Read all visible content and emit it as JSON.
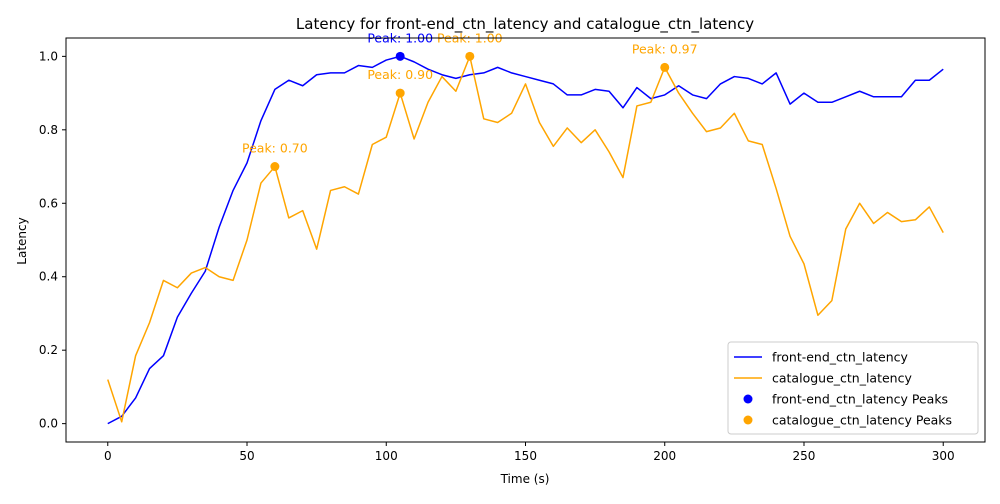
{
  "chart_data": {
    "type": "line",
    "title": "Latency for front-end_ctn_latency and catalogue_ctn_latency",
    "xlabel": "Time (s)",
    "ylabel": "Latency",
    "xlim": [
      -15,
      315
    ],
    "ylim": [
      -0.05,
      1.05
    ],
    "xticks": [
      0,
      50,
      100,
      150,
      200,
      250,
      300
    ],
    "xtick_labels": [
      "0",
      "50",
      "100",
      "150",
      "200",
      "250",
      "300"
    ],
    "yticks": [
      0.0,
      0.2,
      0.4,
      0.6,
      0.8,
      1.0
    ],
    "ytick_labels": [
      "0.0",
      "0.2",
      "0.4",
      "0.6",
      "0.8",
      "1.0"
    ],
    "grid": false,
    "legend_position": "lower-right",
    "x": [
      0,
      5,
      10,
      15,
      20,
      25,
      30,
      35,
      40,
      45,
      50,
      55,
      60,
      65,
      70,
      75,
      80,
      85,
      90,
      95,
      100,
      105,
      110,
      115,
      120,
      125,
      130,
      135,
      140,
      145,
      150,
      155,
      160,
      165,
      170,
      175,
      180,
      185,
      190,
      195,
      200,
      205,
      210,
      215,
      220,
      225,
      230,
      235,
      240,
      245,
      250,
      255,
      260,
      265,
      270,
      275,
      280,
      285,
      290,
      295,
      300
    ],
    "series": [
      {
        "name": "front-end_ctn_latency",
        "color": "#0000ff",
        "values": [
          0.0,
          0.02,
          0.07,
          0.15,
          0.185,
          0.29,
          0.355,
          0.415,
          0.535,
          0.635,
          0.71,
          0.825,
          0.91,
          0.935,
          0.92,
          0.95,
          0.955,
          0.955,
          0.975,
          0.97,
          0.99,
          1.0,
          0.985,
          0.965,
          0.95,
          0.94,
          0.95,
          0.955,
          0.97,
          0.955,
          0.945,
          0.935,
          0.925,
          0.895,
          0.895,
          0.91,
          0.905,
          0.86,
          0.915,
          0.885,
          0.895,
          0.92,
          0.895,
          0.885,
          0.925,
          0.945,
          0.94,
          0.925,
          0.955,
          0.87,
          0.9,
          0.875,
          0.875,
          0.89,
          0.905,
          0.89,
          0.89,
          0.89,
          0.935,
          0.935,
          0.965
        ]
      },
      {
        "name": "catalogue_ctn_latency",
        "color": "#ffa500",
        "values": [
          0.12,
          0.005,
          0.185,
          0.275,
          0.39,
          0.37,
          0.41,
          0.425,
          0.4,
          0.39,
          0.5,
          0.655,
          0.7,
          0.56,
          0.58,
          0.475,
          0.635,
          0.645,
          0.625,
          0.76,
          0.78,
          0.9,
          0.775,
          0.875,
          0.945,
          0.905,
          1.0,
          0.83,
          0.82,
          0.845,
          0.925,
          0.82,
          0.755,
          0.805,
          0.765,
          0.8,
          0.74,
          0.67,
          0.865,
          0.875,
          0.97,
          0.9,
          0.845,
          0.795,
          0.805,
          0.845,
          0.77,
          0.76,
          0.64,
          0.51,
          0.435,
          0.295,
          0.335,
          0.53,
          0.6,
          0.545,
          0.575,
          0.55,
          0.555,
          0.59,
          0.52
        ]
      }
    ],
    "peaks": [
      {
        "series": "front-end_ctn_latency Peaks",
        "color": "#0000ff",
        "points": [
          {
            "x": 105,
            "y": 1.0,
            "label": "Peak: 1.00"
          }
        ]
      },
      {
        "series": "catalogue_ctn_latency Peaks",
        "color": "#ffa500",
        "points": [
          {
            "x": 60,
            "y": 0.7,
            "label": "Peak: 0.70"
          },
          {
            "x": 105,
            "y": 0.9,
            "label": "Peak: 0.90"
          },
          {
            "x": 130,
            "y": 1.0,
            "label": "Peak: 1.00"
          },
          {
            "x": 200,
            "y": 0.97,
            "label": "Peak: 0.97"
          }
        ]
      }
    ],
    "legend": [
      {
        "label": "front-end_ctn_latency",
        "kind": "line",
        "color": "#0000ff"
      },
      {
        "label": "catalogue_ctn_latency",
        "kind": "line",
        "color": "#ffa500"
      },
      {
        "label": "front-end_ctn_latency Peaks",
        "kind": "marker",
        "color": "#0000ff"
      },
      {
        "label": "catalogue_ctn_latency Peaks",
        "kind": "marker",
        "color": "#ffa500"
      }
    ]
  }
}
